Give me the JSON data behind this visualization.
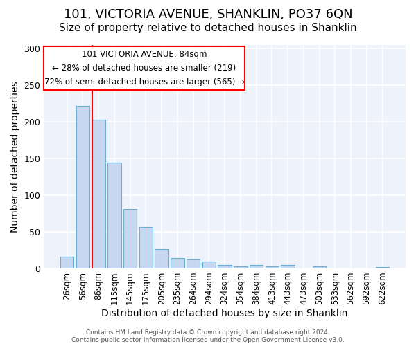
{
  "title": "101, VICTORIA AVENUE, SHANKLIN, PO37 6QN",
  "subtitle": "Size of property relative to detached houses in Shanklin",
  "xlabel": "Distribution of detached houses by size in Shanklin",
  "ylabel": "Number of detached properties",
  "bar_labels": [
    "26sqm",
    "56sqm",
    "86sqm",
    "115sqm",
    "145sqm",
    "175sqm",
    "205sqm",
    "235sqm",
    "264sqm",
    "294sqm",
    "324sqm",
    "354sqm",
    "384sqm",
    "413sqm",
    "443sqm",
    "473sqm",
    "503sqm",
    "533sqm",
    "562sqm",
    "592sqm",
    "622sqm"
  ],
  "bar_values": [
    16,
    222,
    203,
    144,
    81,
    57,
    26,
    14,
    13,
    9,
    5,
    3,
    5,
    3,
    5,
    0,
    3,
    0,
    0,
    0,
    2
  ],
  "bar_color": "#c5d8f0",
  "bar_edgecolor": "#6baed6",
  "background_color": "#eef2fb",
  "ylim": [
    0,
    305
  ],
  "yticks": [
    0,
    50,
    100,
    150,
    200,
    250,
    300
  ],
  "red_line_bar_index": 2,
  "annotation_line1": "101 VICTORIA AVENUE: 84sqm",
  "annotation_line2": "← 28% of detached houses are smaller (219)",
  "annotation_line3": "72% of semi-detached houses are larger (565) →",
  "footer_line1": "Contains HM Land Registry data © Crown copyright and database right 2024.",
  "footer_line2": "Contains public sector information licensed under the Open Government Licence v3.0.",
  "title_fontsize": 13,
  "subtitle_fontsize": 11,
  "tick_fontsize": 8.5,
  "label_fontsize": 10,
  "ylabel_fontsize": 10
}
